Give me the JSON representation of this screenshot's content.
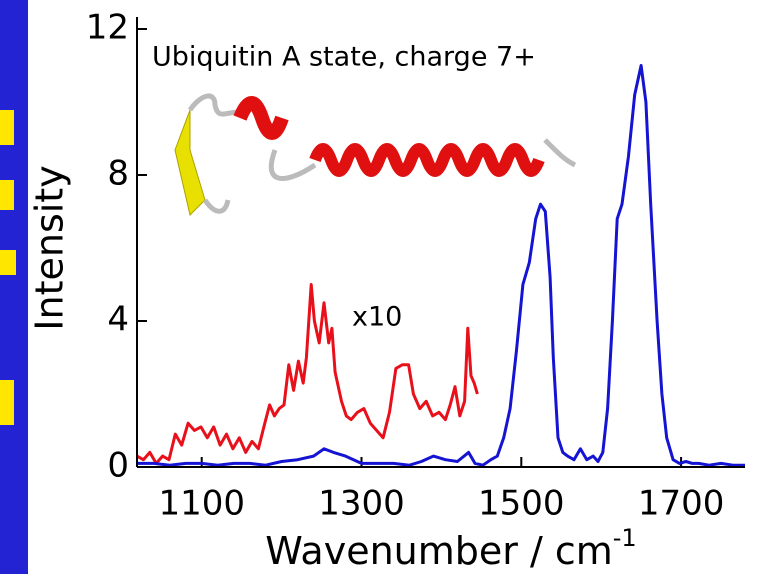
{
  "chart_data": {
    "type": "line",
    "annotations": [
      "Ubiquitin A state, charge 7+",
      "x10"
    ],
    "xlabel": "Wavenumber / cm",
    "xlabel_superscript": "-1",
    "ylabel": "Intensity",
    "xlim": [
      1019,
      1780
    ],
    "ylim": [
      0,
      12
    ],
    "xticks": [
      1100,
      1300,
      1500,
      1700
    ],
    "yticks": [
      0,
      4,
      8,
      12
    ],
    "series": [
      {
        "name": "x10",
        "color": "#e8101a",
        "x": [
          1019,
          1027,
          1035,
          1043,
          1051,
          1059,
          1067,
          1075,
          1083,
          1091,
          1099,
          1107,
          1115,
          1123,
          1131,
          1139,
          1147,
          1155,
          1163,
          1171,
          1179,
          1185,
          1191,
          1197,
          1203,
          1209,
          1215,
          1221,
          1227,
          1231,
          1237,
          1241,
          1247,
          1253,
          1259,
          1263,
          1267,
          1271,
          1275,
          1281,
          1287,
          1295,
          1303,
          1311,
          1319,
          1327,
          1335,
          1343,
          1351,
          1359,
          1365,
          1373,
          1381,
          1389,
          1397,
          1405,
          1411,
          1417,
          1423,
          1429,
          1433,
          1437,
          1441,
          1445
        ],
        "values": [
          0.3,
          0.2,
          0.4,
          0.1,
          0.3,
          0.2,
          0.9,
          0.6,
          1.2,
          1.0,
          1.1,
          0.8,
          1.1,
          0.6,
          0.9,
          0.5,
          0.8,
          0.4,
          0.7,
          0.5,
          1.2,
          1.7,
          1.4,
          1.6,
          1.7,
          2.8,
          2.1,
          2.9,
          2.3,
          3.0,
          5.0,
          4.0,
          3.4,
          4.5,
          3.4,
          3.8,
          2.6,
          2.2,
          1.8,
          1.4,
          1.3,
          1.5,
          1.6,
          1.2,
          1.0,
          0.8,
          1.5,
          2.7,
          2.8,
          2.8,
          2.0,
          1.6,
          1.8,
          1.4,
          1.5,
          1.3,
          1.7,
          2.2,
          1.4,
          1.8,
          3.8,
          2.5,
          2.3,
          2.0
        ]
      },
      {
        "name": "Intensity",
        "color": "#1414d2",
        "x": [
          1019,
          1040,
          1060,
          1080,
          1100,
          1120,
          1140,
          1160,
          1180,
          1200,
          1220,
          1240,
          1253,
          1265,
          1280,
          1300,
          1320,
          1340,
          1360,
          1375,
          1390,
          1405,
          1420,
          1434,
          1442,
          1452,
          1462,
          1470,
          1478,
          1486,
          1494,
          1502,
          1510,
          1518,
          1524,
          1530,
          1536,
          1540,
          1546,
          1552,
          1558,
          1566,
          1574,
          1582,
          1590,
          1596,
          1602,
          1608,
          1614,
          1620,
          1626,
          1634,
          1642,
          1650,
          1656,
          1662,
          1670,
          1676,
          1682,
          1690,
          1698,
          1706,
          1714,
          1722,
          1735,
          1750,
          1765,
          1780
        ],
        "values": [
          0.1,
          0.1,
          0.05,
          0.1,
          0.1,
          0.05,
          0.1,
          0.1,
          0.05,
          0.15,
          0.2,
          0.3,
          0.5,
          0.4,
          0.3,
          0.1,
          0.1,
          0.1,
          0.05,
          0.15,
          0.3,
          0.2,
          0.15,
          0.4,
          0.1,
          0.05,
          0.2,
          0.3,
          0.8,
          1.6,
          3.2,
          5.0,
          5.6,
          6.8,
          7.2,
          7.0,
          5.2,
          3.0,
          0.8,
          0.4,
          0.3,
          0.2,
          0.5,
          0.2,
          0.3,
          0.15,
          0.4,
          1.6,
          4.0,
          6.8,
          7.2,
          8.5,
          10.2,
          11.0,
          10.0,
          7.2,
          4.0,
          2.0,
          0.8,
          0.2,
          0.1,
          0.15,
          0.1,
          0.1,
          0.05,
          0.1,
          0.05,
          0.05
        ]
      }
    ]
  }
}
